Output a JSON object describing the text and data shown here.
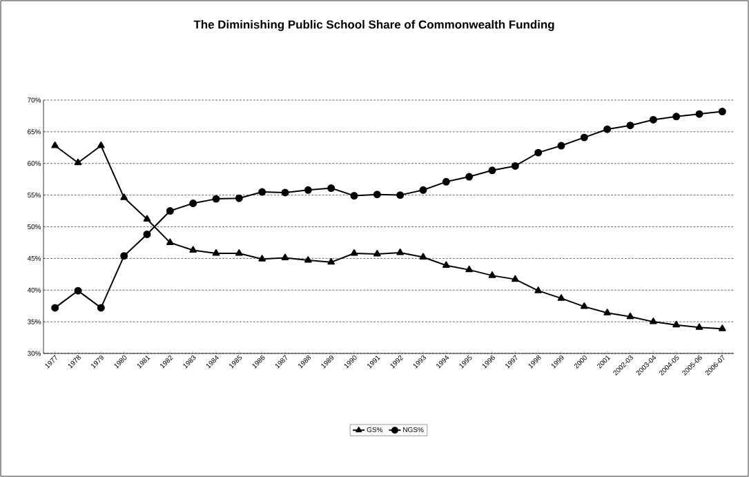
{
  "chart_data": {
    "type": "line",
    "title": "The Diminishing Public School Share of Commonwealth Funding",
    "categories": [
      "1977",
      "1978",
      "1979",
      "1980",
      "1981",
      "1982",
      "1983",
      "1984",
      "1985",
      "1986",
      "1987",
      "1988",
      "1989",
      "1990",
      "1991",
      "1992",
      "1993",
      "1994",
      "1995",
      "1996",
      "1997",
      "1998",
      "1999",
      "2000",
      "2001",
      "2002-03",
      "2003-04",
      "2004-05",
      "2005-06",
      "2006-07"
    ],
    "series": [
      {
        "name": "GS%",
        "color": "#000000",
        "marker": "triangle",
        "values": [
          62.8,
          60.1,
          62.8,
          54.6,
          51.2,
          47.5,
          46.3,
          45.8,
          45.8,
          44.9,
          45.1,
          44.7,
          44.4,
          45.8,
          45.7,
          45.9,
          45.2,
          43.9,
          43.2,
          42.3,
          41.7,
          39.9,
          38.7,
          37.4,
          36.4,
          35.8,
          35.0,
          34.5,
          34.1,
          33.9
        ]
      },
      {
        "name": "NGS%",
        "color": "#000000",
        "marker": "circle",
        "values": [
          37.2,
          39.9,
          37.2,
          45.4,
          48.8,
          52.5,
          53.7,
          54.4,
          54.5,
          55.5,
          55.4,
          55.8,
          56.1,
          54.9,
          55.1,
          55.0,
          55.8,
          57.1,
          57.9,
          58.9,
          59.6,
          61.7,
          62.8,
          64.1,
          65.4,
          66.0,
          66.9,
          67.4,
          67.8,
          68.2
        ]
      }
    ],
    "ylim": [
      30,
      70
    ],
    "yticks": [
      {
        "value": 30,
        "label": "30%"
      },
      {
        "value": 35,
        "label": "35%"
      },
      {
        "value": 40,
        "label": "40%"
      },
      {
        "value": 45,
        "label": "45%"
      },
      {
        "value": 50,
        "label": "50%"
      },
      {
        "value": 55,
        "label": "55%"
      },
      {
        "value": 60,
        "label": "60%"
      },
      {
        "value": 65,
        "label": "65%"
      },
      {
        "value": 70,
        "label": "70%"
      }
    ],
    "grid": "y",
    "legend": "bottom",
    "line_style": "solid"
  }
}
